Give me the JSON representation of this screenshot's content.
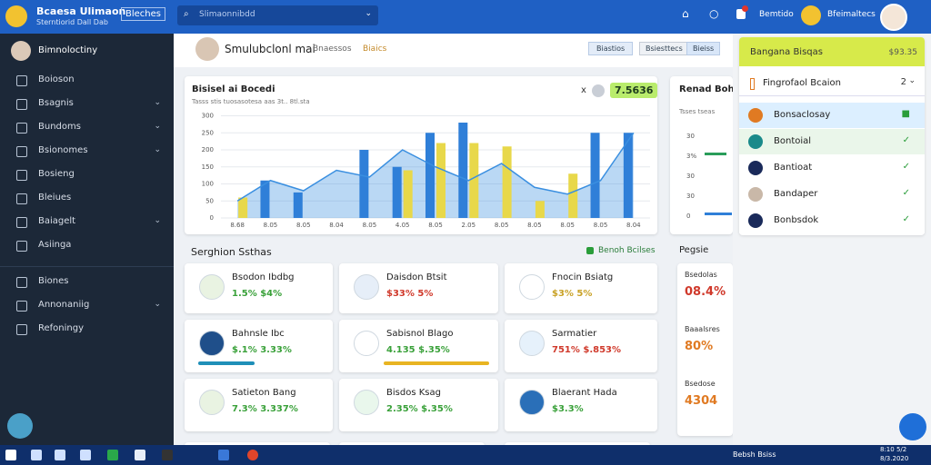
{
  "topbar": {
    "app_title": "Bcaesa Ulimaon",
    "app_subtitle": "Sterntiorid Dall Dab",
    "button": "Bleches",
    "search_placeholder": "Slimaonnibdd",
    "status": "Bemtido",
    "user": "Bfeimaltecs"
  },
  "sidebar": {
    "user": "Bimnoloctiny",
    "items": [
      "Boioson",
      "Bsagnis",
      "Bundoms",
      "Bsionomes",
      "Bosieng",
      "Bleiues",
      "Baiagelt",
      "Asiinga"
    ],
    "items2": [
      "Biones",
      "Annonaniig",
      "Refoningy"
    ]
  },
  "header": {
    "title": "Smulubclonl mai",
    "subtitle": "Bnaessos",
    "tag": "Biaics",
    "buttons": [
      "Biastios",
      "Bsiesttecs",
      "Bieiss"
    ]
  },
  "chart": {
    "title": "Bisisel ai Bocedi",
    "subtitle": "Tasss stis tuosasotesa aas 3t.. 8tl.sta",
    "close": "x",
    "badge": "7.5636",
    "categories": [
      "8.68",
      "8.05",
      "8.05",
      "8.04",
      "8.05",
      "4.05",
      "8.05",
      "2.05",
      "8.05",
      "8.05",
      "8.05",
      "8.05",
      "8.04"
    ],
    "ylim": [
      0,
      320
    ],
    "yticks": [
      0,
      50,
      100,
      150,
      200,
      250,
      300
    ],
    "series": [
      {
        "color": "#2f7fd8",
        "values": [
          null,
          110,
          75,
          null,
          200,
          150,
          250,
          280,
          null,
          null,
          null,
          250,
          250
        ]
      },
      {
        "color": "#e8d84a",
        "values": [
          60,
          null,
          null,
          null,
          null,
          140,
          220,
          220,
          210,
          50,
          130,
          null,
          null
        ]
      }
    ],
    "line": {
      "color": "#3a8fe0",
      "values": [
        50,
        110,
        80,
        140,
        120,
        200,
        150,
        110,
        160,
        90,
        70,
        110,
        250
      ]
    }
  },
  "side_chart": {
    "title": "Renad Bohiar",
    "subtitle": "Tsses tseas",
    "ylabels": [
      "30",
      "3%",
      "30",
      "30",
      "0"
    ]
  },
  "section": {
    "title": "Serghion Ssthas",
    "link": "Benoh Bcilses"
  },
  "cards": [
    {
      "title": "Bsodon Ibdbg",
      "value": "1.5% $4%"
    },
    {
      "title": "Daisdon Btsit",
      "value": "$33% 5%"
    },
    {
      "title": "Fnocin Bsiatg",
      "value": "$3% 5%"
    },
    {
      "title": "Bahnsle Ibc",
      "value": "$.1% 3.33%"
    },
    {
      "title": "Sabisnol Blago",
      "value": "4.135 $.35%"
    },
    {
      "title": "Sarmatier",
      "value": "751% $.853%"
    },
    {
      "title": "Satieton Bang",
      "value": "7.3% 3.337%"
    },
    {
      "title": "Bisdos Ksag",
      "value": "2.35% $.35%"
    },
    {
      "title": "Blaerant Hada",
      "value": "$3.3%"
    }
  ],
  "mini_list": {
    "title": "Pegsie",
    "items": [
      {
        "label": "Bsedolas",
        "value": "08.4%"
      },
      {
        "label": "Baaalsres",
        "value": "80%"
      },
      {
        "label": "Bsedose",
        "value": "4304"
      }
    ]
  },
  "panel": {
    "title": "Bangana Bisqas",
    "amount": "$93.35",
    "dropdown": "Fingrofaol Bcaion",
    "dropdown_value": "2",
    "items": [
      "Bonsaclosay",
      "Bontoial",
      "Bantioat",
      "Bandaper",
      "Bonbsdok"
    ]
  },
  "taskbar": {
    "tray": "Bebsh Bsiss",
    "time": "8:10 5/2",
    "date": "8/3.2020"
  }
}
